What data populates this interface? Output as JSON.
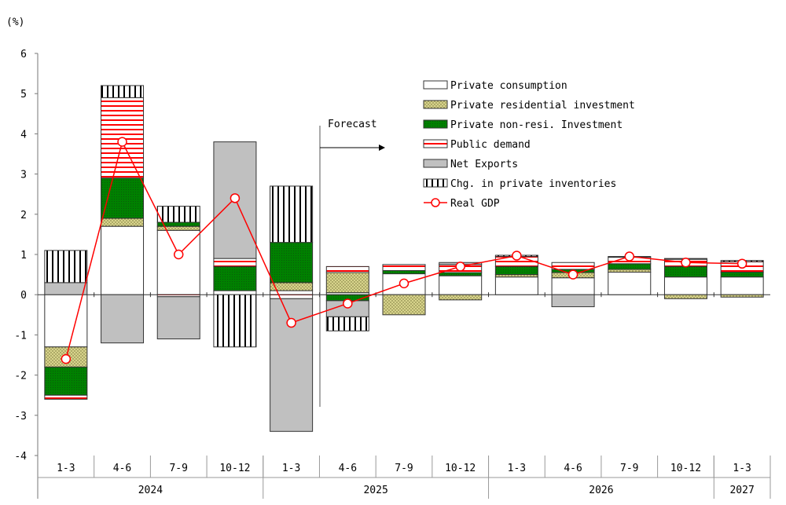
{
  "chart_data": {
    "type": "bar",
    "subtype": "stacked bar with line",
    "unit_label": "(%)",
    "ylim": [
      -4,
      6
    ],
    "yticks": [
      "-4",
      "-3",
      "-2",
      "-1",
      "0",
      "1",
      "2",
      "3",
      "4",
      "5",
      "6"
    ],
    "categories": [
      "1-3",
      "4-6",
      "7-9",
      "10-12",
      "1-3",
      "4-6",
      "7-9",
      "10-12",
      "1-3",
      "4-6",
      "7-9",
      "10-12",
      "1-3"
    ],
    "years": [
      {
        "label": "2024",
        "span": 4
      },
      {
        "label": "2025",
        "span": 4
      },
      {
        "label": "2026",
        "span": 4
      },
      {
        "label": "2027",
        "span": 1
      }
    ],
    "forecast_label": "Forecast",
    "forecast_start_index": 5,
    "series": [
      {
        "name": "Private consumption",
        "key": "pc",
        "values": [
          -1.3,
          1.7,
          1.6,
          0.1,
          0.1,
          0.05,
          0.52,
          0.47,
          0.44,
          0.42,
          0.56,
          0.44,
          0.44
        ]
      },
      {
        "name": "Private residential investment",
        "key": "res",
        "values": [
          -0.5,
          0.2,
          0.1,
          0.0,
          0.2,
          0.5,
          -0.5,
          -0.13,
          0.06,
          0.13,
          0.07,
          -0.1,
          -0.06
        ]
      },
      {
        "name": "Private non-resi. Investment",
        "key": "nonres",
        "values": [
          -0.7,
          1.0,
          0.1,
          0.6,
          1.0,
          -0.15,
          0.08,
          0.08,
          0.2,
          0.08,
          0.14,
          0.26,
          0.12
        ]
      },
      {
        "name": "Public demand",
        "key": "pub",
        "values": [
          -0.1,
          2.0,
          -0.05,
          0.2,
          -0.1,
          0.15,
          0.15,
          0.2,
          0.25,
          0.17,
          0.16,
          0.18,
          0.26
        ]
      },
      {
        "name": "Net Exports",
        "key": "nx",
        "values": [
          0.3,
          -1.2,
          -1.05,
          2.9,
          -3.3,
          -0.4,
          0.0,
          0.05,
          0.0,
          -0.3,
          0.0,
          0.02,
          0.0
        ]
      },
      {
        "name": "Chg. in private inventories",
        "key": "inv",
        "values": [
          0.8,
          0.3,
          0.4,
          -1.3,
          1.4,
          -0.35,
          0.0,
          0.0,
          0.03,
          0.0,
          0.02,
          0.0,
          0.03
        ]
      }
    ],
    "line": {
      "name": "Real GDP",
      "values": [
        -1.6,
        3.8,
        1.0,
        2.4,
        -0.7,
        -0.22,
        0.28,
        0.7,
        0.97,
        0.5,
        0.95,
        0.8,
        0.77
      ]
    },
    "colors": {
      "pc": "#ffffff",
      "res": "#d8d48c",
      "nonres": "#008000",
      "pub": "#ff0000",
      "nx": "#c0c0c0",
      "inv": "#000000",
      "gdp": "#ff0000"
    },
    "legend_placement": "top-right"
  }
}
